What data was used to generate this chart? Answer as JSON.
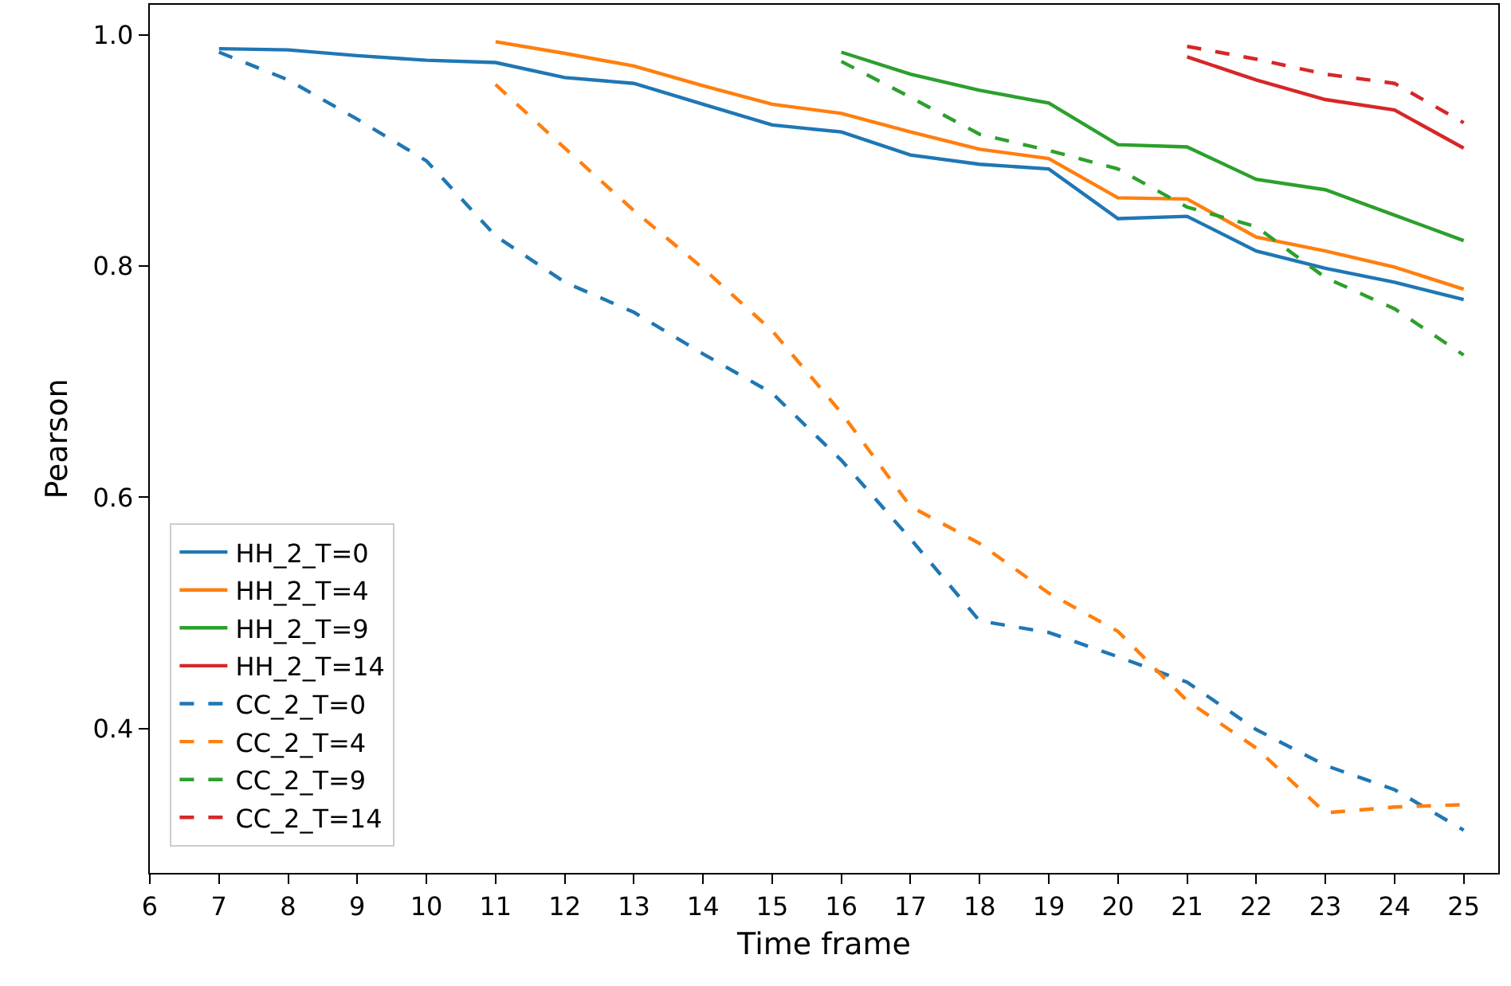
{
  "chart_data": {
    "type": "line",
    "xlabel": "Time frame",
    "ylabel": "Pearson",
    "xlim": [
      6,
      25.5
    ],
    "xticks": [
      6,
      7,
      8,
      9,
      10,
      11,
      12,
      13,
      14,
      15,
      16,
      17,
      18,
      19,
      20,
      21,
      22,
      23,
      24,
      25
    ],
    "ylim": [
      0.275,
      1.026
    ],
    "yticks": [
      {
        "value": 0.4,
        "label": "0.4"
      },
      {
        "value": 0.6,
        "label": "0.6"
      },
      {
        "value": 0.8,
        "label": "0.8"
      },
      {
        "value": 1.0,
        "label": "1.0"
      }
    ],
    "grid": false,
    "legend": "bottom left",
    "marker": "none",
    "series": [
      {
        "name": "HH_2_T=0",
        "color": "#1f77b4",
        "line_style": "solid",
        "x": [
          7,
          8,
          9,
          10,
          11,
          12,
          13,
          14,
          15,
          16,
          17,
          18,
          19,
          20,
          21,
          22,
          23,
          24,
          25
        ],
        "values": [
          0.988,
          0.987,
          0.982,
          0.978,
          0.976,
          0.963,
          0.958,
          0.94,
          0.922,
          0.916,
          0.896,
          0.888,
          0.884,
          0.841,
          0.843,
          0.813,
          0.798,
          0.786,
          0.771
        ]
      },
      {
        "name": "HH_2_T=4",
        "color": "#ff7f0e",
        "line_style": "solid",
        "x": [
          11,
          12,
          13,
          14,
          15,
          16,
          17,
          18,
          19,
          20,
          21,
          22,
          23,
          24,
          25
        ],
        "values": [
          0.994,
          0.984,
          0.973,
          0.956,
          0.94,
          0.932,
          0.916,
          0.901,
          0.893,
          0.859,
          0.858,
          0.825,
          0.813,
          0.799,
          0.78
        ]
      },
      {
        "name": "HH_2_T=9",
        "color": "#2ca02c",
        "line_style": "solid",
        "x": [
          16,
          17,
          18,
          19,
          20,
          21,
          22,
          23,
          24,
          25
        ],
        "values": [
          0.985,
          0.966,
          0.952,
          0.941,
          0.905,
          0.903,
          0.875,
          0.866,
          0.844,
          0.822
        ]
      },
      {
        "name": "HH_2_T=14",
        "color": "#d62728",
        "line_style": "solid",
        "x": [
          21,
          22,
          23,
          24,
          25
        ],
        "values": [
          0.981,
          0.961,
          0.944,
          0.935,
          0.902
        ]
      },
      {
        "name": "CC_2_T=0",
        "color": "#1f77b4",
        "line_style": "dashed",
        "x": [
          7,
          8,
          9,
          10,
          11,
          12,
          13,
          14,
          15,
          16,
          17,
          18,
          19,
          20,
          21,
          22,
          23,
          24,
          25
        ],
        "values": [
          0.985,
          0.961,
          0.927,
          0.891,
          0.826,
          0.786,
          0.76,
          0.724,
          0.69,
          0.632,
          0.564,
          0.493,
          0.483,
          0.462,
          0.44,
          0.399,
          0.368,
          0.347,
          0.312
        ]
      },
      {
        "name": "CC_2_T=4",
        "color": "#ff7f0e",
        "line_style": "dashed",
        "x": [
          11,
          12,
          13,
          14,
          15,
          16,
          17,
          18,
          19,
          20,
          21,
          22,
          23,
          24,
          25
        ],
        "values": [
          0.957,
          0.902,
          0.848,
          0.798,
          0.744,
          0.673,
          0.592,
          0.56,
          0.517,
          0.484,
          0.424,
          0.383,
          0.327,
          0.332,
          0.334
        ]
      },
      {
        "name": "CC_2_T=9",
        "color": "#2ca02c",
        "line_style": "dashed",
        "x": [
          16,
          17,
          18,
          19,
          20,
          21,
          22,
          23,
          24,
          25
        ],
        "values": [
          0.977,
          0.946,
          0.914,
          0.9,
          0.884,
          0.851,
          0.834,
          0.79,
          0.763,
          0.723
        ]
      },
      {
        "name": "CC_2_T=14",
        "color": "#d62728",
        "line_style": "dashed",
        "x": [
          21,
          22,
          23,
          24,
          25
        ],
        "values": [
          0.99,
          0.979,
          0.966,
          0.958,
          0.924
        ]
      }
    ]
  }
}
